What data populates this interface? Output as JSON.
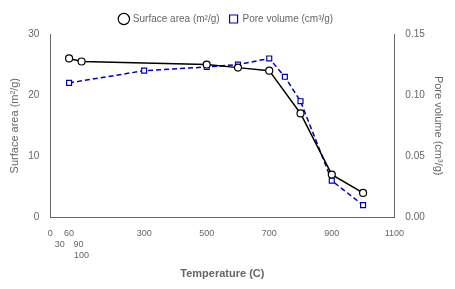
{
  "chart_data": {
    "type": "line",
    "xlabel": "Temperature (C)",
    "ylabel": "Surface area (m²/g)",
    "y2label": "Pore volume (cm³/g)",
    "series": [
      {
        "name": "Surface area (m²/g)",
        "color": "#000000",
        "marker": "circle",
        "line_style": "solid",
        "x": [
          60,
          100,
          500,
          600,
          700,
          800,
          900,
          1000
        ],
        "values": [
          26.0,
          25.5,
          25.0,
          24.5,
          24.0,
          17.0,
          7.0,
          4.0
        ]
      },
      {
        "name": "Pore volume (cm³/g)",
        "color": "#0000bb",
        "marker": "square",
        "line_style": "dashed",
        "axis": "y2",
        "x": [
          60,
          300,
          500,
          600,
          700,
          750,
          800,
          900,
          1000
        ],
        "values": [
          0.11,
          0.12,
          0.123,
          0.125,
          0.13,
          0.115,
          0.095,
          0.03,
          0.01
        ]
      }
    ],
    "xlim": [
      0,
      1100
    ],
    "xticks": [
      0,
      30,
      60,
      90,
      100,
      300,
      500,
      700,
      900,
      1100
    ],
    "ylim": [
      0,
      30
    ],
    "yticks": [
      0,
      10,
      20,
      30
    ],
    "y2lim": [
      0,
      0.15
    ],
    "y2ticks": [
      {
        "value": 0,
        "label": "0.00"
      },
      0.05,
      {
        "value": 0.1,
        "label": "0.10"
      },
      0.15
    ],
    "grid": false,
    "legend": "top"
  }
}
